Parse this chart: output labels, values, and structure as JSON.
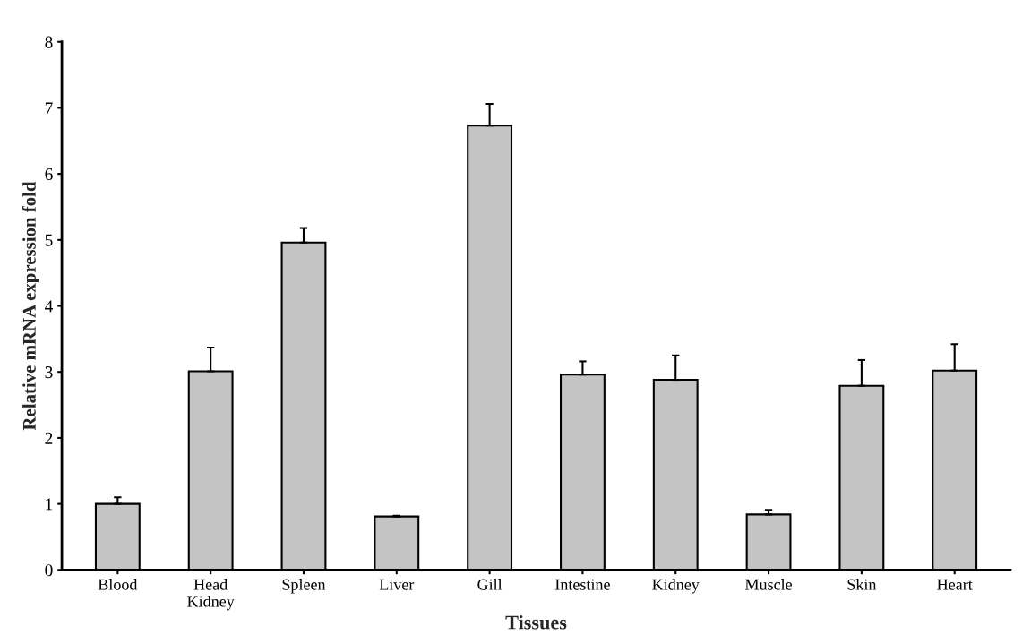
{
  "chart_data": {
    "type": "bar",
    "xlabel": "Tissues",
    "ylabel": "Relative mRNA expression fold",
    "categories": [
      "Blood",
      "Head\nKidney",
      "Spleen",
      "Liver",
      "Gill",
      "Intestine",
      "Kidney",
      "Muscle",
      "Skin",
      "Heart"
    ],
    "values": [
      1.0,
      3.01,
      4.96,
      0.81,
      6.73,
      2.96,
      2.88,
      0.84,
      2.79,
      3.02
    ],
    "errors": [
      [
        1.0,
        1.1
      ],
      [
        3.01,
        3.37
      ],
      [
        4.96,
        5.18
      ],
      [
        0.81,
        0.82
      ],
      [
        6.73,
        7.06
      ],
      [
        2.96,
        3.16
      ],
      [
        2.88,
        3.25
      ],
      [
        0.84,
        0.91
      ],
      [
        2.79,
        3.18
      ],
      [
        3.02,
        3.42
      ]
    ],
    "color": "#c4c4c4",
    "ylim": [
      0,
      8
    ],
    "yticks": [
      0,
      1,
      2,
      3,
      4,
      5,
      6,
      7,
      8
    ],
    "grid": false
  }
}
